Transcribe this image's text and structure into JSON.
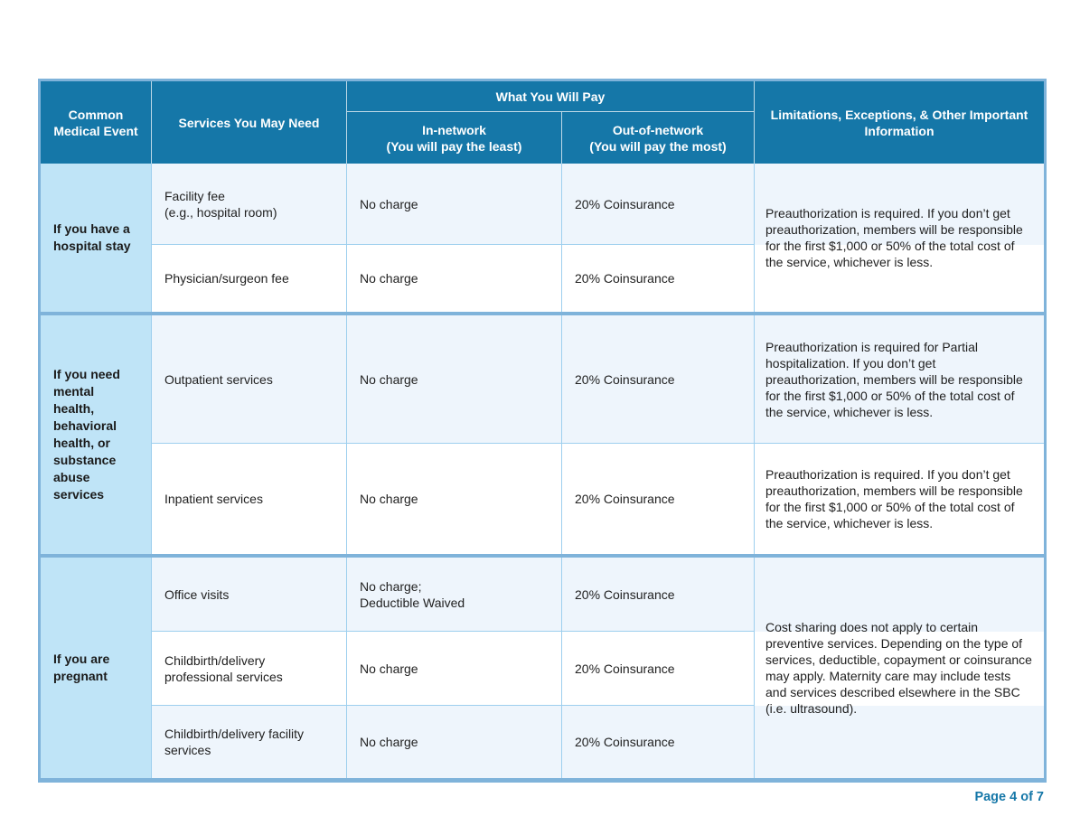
{
  "colors": {
    "header_bg": "#1577a8",
    "event_column_bg": "#bfe4f7",
    "row_tint_bg": "#eef5fc",
    "row_white_bg": "#ffffff",
    "group_separator": "#7fb3da",
    "grid_line": "#9dcfee",
    "footer_text": "#1577a8"
  },
  "header": {
    "common_medical_event": "Common Medical Event",
    "services_you_may_need": "Services You May Need",
    "what_you_will_pay": "What You Will Pay",
    "in_network": "In-network\n(You will pay the least)",
    "out_of_network": "Out-of-network\n(You will pay the most)",
    "limitations": "Limitations, Exceptions, & Other Important Information"
  },
  "groups": [
    {
      "event": "If you have a hospital stay",
      "rows": [
        {
          "service": "Facility fee\n(e.g., hospital room)",
          "in_network": "No charge",
          "out_of_network": "20% Coinsurance"
        },
        {
          "service": "Physician/surgeon fee",
          "in_network": "No charge",
          "out_of_network": "20% Coinsurance"
        }
      ],
      "limitations": [
        "Preauthorization is required. If you don’t get preauthorization, members will be responsible for the first $1,000 or 50% of the total cost of the service, whichever is less."
      ]
    },
    {
      "event": "If you need mental health, behavioral health, or substance abuse services",
      "rows": [
        {
          "service": "Outpatient services",
          "in_network": "No charge",
          "out_of_network": "20% Coinsurance"
        },
        {
          "service": "Inpatient services",
          "in_network": "No charge",
          "out_of_network": "20% Coinsurance"
        }
      ],
      "limitations": [
        "Preauthorization is required for Partial hospitalization. If you don’t get preauthorization, members will be responsible for the first $1,000 or 50% of the total cost of the service, whichever is less.",
        "Preauthorization is required. If you don’t get preauthorization, members will be responsible for the first $1,000 or 50% of the total cost of the service, whichever is less."
      ]
    },
    {
      "event": "If you are pregnant",
      "rows": [
        {
          "service": "Office visits",
          "in_network": "No charge;\nDeductible Waived",
          "out_of_network": "20% Coinsurance"
        },
        {
          "service": "Childbirth/delivery\nprofessional services",
          "in_network": "No charge",
          "out_of_network": "20% Coinsurance"
        },
        {
          "service": "Childbirth/delivery facility\nservices",
          "in_network": "No charge",
          "out_of_network": "20% Coinsurance"
        }
      ],
      "limitations": [
        "Cost sharing does not apply to certain preventive services. Depending on the type of services, deductible, copayment or coinsurance may apply. Maternity care may include tests and services described elsewhere in the SBC (i.e. ultrasound)."
      ]
    }
  ],
  "footer": {
    "page_label": "Page 4 of 7"
  }
}
